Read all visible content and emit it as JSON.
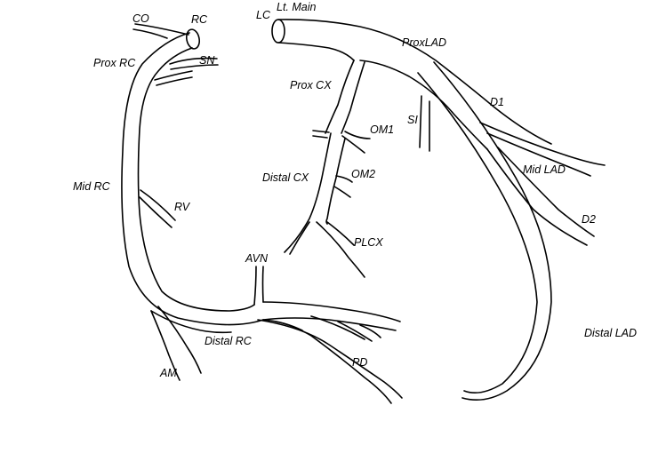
{
  "labels": {
    "co": "CO",
    "rc": "RC",
    "prox_rc": "Prox RC",
    "sn": "SN",
    "mid_rc": "Mid RC",
    "rv": "RV",
    "distal_rc": "Distal RC",
    "am": "AM",
    "lc": "LC",
    "lt_main": "Lt. Main",
    "prox_lad": "ProxLAD",
    "prox_cx": "Prox CX",
    "om1": "OM1",
    "si": "SI",
    "d1": "D1",
    "mid_lad": "Mid LAD",
    "distal_cx": "Distal CX",
    "om2": "OM2",
    "d2": "D2",
    "plcx": "PLCX",
    "avn": "AVN",
    "distal_lad": "Distal LAD",
    "pd": "PD"
  },
  "colors": {
    "stroke": "#000000",
    "background": "#ffffff"
  }
}
